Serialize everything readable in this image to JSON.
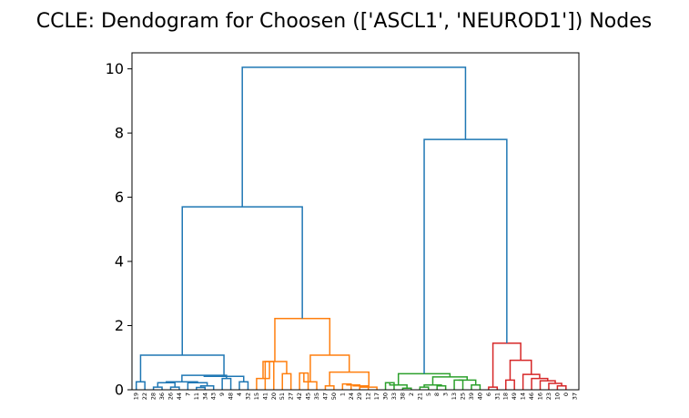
{
  "chart_data": {
    "type": "dendrogram",
    "title": "CCLE: Dendogram for Choosen (['ASCL1', 'NEUROD1']) Nodes",
    "xlabel": "",
    "ylabel": "",
    "ylim": [
      0,
      10.5
    ],
    "yticks": [
      0,
      2,
      4,
      6,
      8,
      10
    ],
    "grid": false,
    "link_color_above_threshold": "#1f77b4",
    "leaves": [
      "19",
      "22",
      "28",
      "36",
      "26",
      "44",
      "7",
      "11",
      "34",
      "43",
      "9",
      "48",
      "4",
      "32",
      "15",
      "41",
      "20",
      "51",
      "27",
      "42",
      "45",
      "35",
      "47",
      "50",
      "1",
      "24",
      "29",
      "12",
      "17",
      "30",
      "33",
      "38",
      "2",
      "21",
      "5",
      "8",
      "3",
      "13",
      "25",
      "39",
      "40",
      "6",
      "31",
      "18",
      "49",
      "14",
      "46",
      "16",
      "23",
      "10",
      "0",
      "37"
    ],
    "leaf_colors": [
      "#1f77b4",
      "#1f77b4",
      "#1f77b4",
      "#1f77b4",
      "#1f77b4",
      "#1f77b4",
      "#1f77b4",
      "#1f77b4",
      "#1f77b4",
      "#1f77b4",
      "#1f77b4",
      "#1f77b4",
      "#1f77b4",
      "#1f77b4",
      "#ff7f0e",
      "#ff7f0e",
      "#ff7f0e",
      "#ff7f0e",
      "#ff7f0e",
      "#ff7f0e",
      "#ff7f0e",
      "#ff7f0e",
      "#ff7f0e",
      "#ff7f0e",
      "#ff7f0e",
      "#ff7f0e",
      "#ff7f0e",
      "#ff7f0e",
      "#ff7f0e",
      "#2ca02c",
      "#2ca02c",
      "#2ca02c",
      "#2ca02c",
      "#2ca02c",
      "#2ca02c",
      "#2ca02c",
      "#2ca02c",
      "#2ca02c",
      "#2ca02c",
      "#2ca02c",
      "#2ca02c",
      "#d62728",
      "#d62728",
      "#d62728",
      "#d62728",
      "#d62728",
      "#d62728",
      "#d62728",
      "#d62728",
      "#d62728",
      "#d62728",
      "#d62728"
    ],
    "merges": [
      {
        "a": "L0",
        "b": "L1",
        "height": 0.25,
        "color": "#1f77b4"
      },
      {
        "a": "L2",
        "b": "L3",
        "height": 0.08,
        "color": "#1f77b4"
      },
      {
        "a": "L4",
        "b": "L5",
        "height": 0.08,
        "color": "#1f77b4"
      },
      {
        "a": "M1",
        "b": "M2",
        "height": 0.22,
        "color": "#1f77b4"
      },
      {
        "a": "L7",
        "b": "L8",
        "height": 0.07,
        "color": "#1f77b4"
      },
      {
        "a": "M4",
        "b": "L9",
        "height": 0.12,
        "color": "#1f77b4"
      },
      {
        "a": "L6",
        "b": "M5",
        "height": 0.22,
        "color": "#1f77b4"
      },
      {
        "a": "M3",
        "b": "M6",
        "height": 0.25,
        "color": "#1f77b4"
      },
      {
        "a": "L10",
        "b": "L11",
        "height": 0.35,
        "color": "#1f77b4"
      },
      {
        "a": "M7",
        "b": "M8",
        "height": 0.45,
        "color": "#1f77b4"
      },
      {
        "a": "L12",
        "b": "L13",
        "height": 0.25,
        "color": "#1f77b4"
      },
      {
        "a": "M9",
        "b": "M10",
        "height": 0.42,
        "color": "#1f77b4"
      },
      {
        "a": "M0",
        "b": "M11",
        "height": 1.08,
        "color": "#1f77b4"
      },
      {
        "a": "L15",
        "b": "L16",
        "height": 0.88,
        "color": "#ff7f0e"
      },
      {
        "a": "L14",
        "b": "M13",
        "height": 0.35,
        "color": "#ff7f0e"
      },
      {
        "a": "L17",
        "b": "L18",
        "height": 0.5,
        "color": "#ff7f0e"
      },
      {
        "a": "M14",
        "b": "M15",
        "height": 0.88,
        "color": "#ff7f0e"
      },
      {
        "a": "L19",
        "b": "L20",
        "height": 0.52,
        "color": "#ff7f0e"
      },
      {
        "a": "M17",
        "b": "L21",
        "height": 0.25,
        "color": "#ff7f0e"
      },
      {
        "a": "L22",
        "b": "L23",
        "height": 0.12,
        "color": "#ff7f0e"
      },
      {
        "a": "L24",
        "b": "L25",
        "height": 0.18,
        "color": "#ff7f0e"
      },
      {
        "a": "M20",
        "b": "L26",
        "height": 0.15,
        "color": "#ff7f0e"
      },
      {
        "a": "M21",
        "b": "L27",
        "height": 0.12,
        "color": "#ff7f0e"
      },
      {
        "a": "M22",
        "b": "L28",
        "height": 0.08,
        "color": "#ff7f0e"
      },
      {
        "a": "M19",
        "b": "M23",
        "height": 0.55,
        "color": "#ff7f0e"
      },
      {
        "a": "M18",
        "b": "M24",
        "height": 1.08,
        "color": "#ff7f0e"
      },
      {
        "a": "M16",
        "b": "M25",
        "height": 2.22,
        "color": "#ff7f0e"
      },
      {
        "a": "M12",
        "b": "M26",
        "height": 5.7,
        "color": "#1f77b4"
      },
      {
        "a": "L29",
        "b": "L30",
        "height": 0.22,
        "color": "#2ca02c"
      },
      {
        "a": "L31",
        "b": "L32",
        "height": 0.05,
        "color": "#2ca02c"
      },
      {
        "a": "M28",
        "b": "M29",
        "height": 0.15,
        "color": "#2ca02c"
      },
      {
        "a": "L33",
        "b": "L34",
        "height": 0.08,
        "color": "#2ca02c"
      },
      {
        "a": "L35",
        "b": "L36",
        "height": 0.12,
        "color": "#2ca02c"
      },
      {
        "a": "M31",
        "b": "M32",
        "height": 0.15,
        "color": "#2ca02c"
      },
      {
        "a": "L37",
        "b": "L38",
        "height": 0.3,
        "color": "#2ca02c"
      },
      {
        "a": "L39",
        "b": "L40",
        "height": 0.15,
        "color": "#2ca02c"
      },
      {
        "a": "M34",
        "b": "M35",
        "height": 0.3,
        "color": "#2ca02c"
      },
      {
        "a": "M33",
        "b": "M36",
        "height": 0.4,
        "color": "#2ca02c"
      },
      {
        "a": "M30",
        "b": "M37",
        "height": 0.5,
        "color": "#2ca02c"
      },
      {
        "a": "L41",
        "b": "L42",
        "height": 0.08,
        "color": "#d62728"
      },
      {
        "a": "L43",
        "b": "L44",
        "height": 0.3,
        "color": "#d62728"
      },
      {
        "a": "L49",
        "b": "L50",
        "height": 0.12,
        "color": "#d62728"
      },
      {
        "a": "L48",
        "b": "M41",
        "height": 0.2,
        "color": "#d62728"
      },
      {
        "a": "L47",
        "b": "M42",
        "height": 0.28,
        "color": "#d62728"
      },
      {
        "a": "L46",
        "b": "M43",
        "height": 0.35,
        "color": "#d62728"
      },
      {
        "a": "L45",
        "b": "M44",
        "height": 0.48,
        "color": "#d62728"
      },
      {
        "a": "M40",
        "b": "M45",
        "height": 0.92,
        "color": "#d62728"
      },
      {
        "a": "M39",
        "b": "M46",
        "height": 1.45,
        "color": "#d62728"
      },
      {
        "a": "M38",
        "b": "M47",
        "height": 7.8,
        "color": "#1f77b4"
      },
      {
        "a": "M27",
        "b": "M48",
        "height": 10.05,
        "color": "#1f77b4"
      }
    ]
  }
}
